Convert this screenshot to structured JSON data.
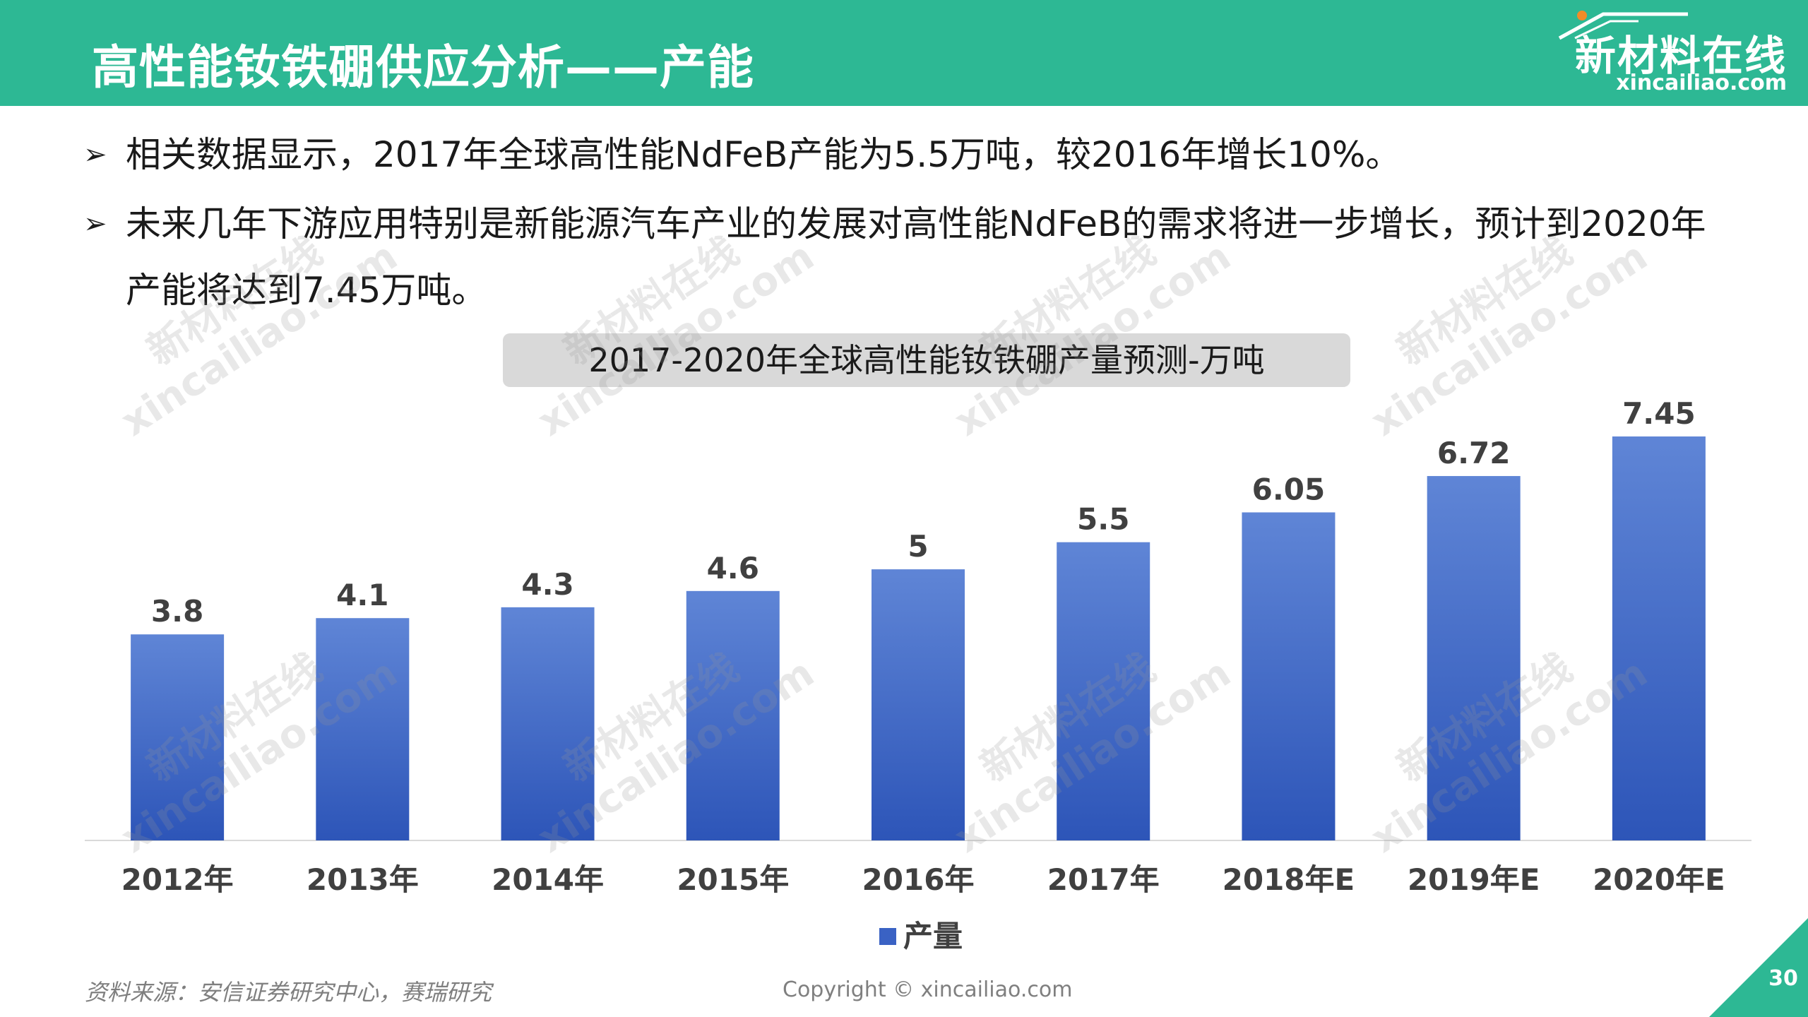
{
  "header": {
    "title": "高性能钕铁硼供应分析——产能",
    "logo_cn": "新材料在线",
    "logo_en": "xincailiao.com"
  },
  "bullets": [
    {
      "arrow": "➢",
      "text": "相关数据显示，2017年全球高性能NdFeB产能为5.5万吨，较2016年增长10%。"
    },
    {
      "arrow": "➢",
      "text": "未来几年下游应用特别是新能源汽车产业的发展对高性能NdFeB的需求将进一步增长，预计到2020年产能将达到7.45万吨。"
    }
  ],
  "chart_data": {
    "type": "bar",
    "title": "2017-2020年全球高性能钕铁硼产量预测-万吨",
    "categories": [
      "2012年",
      "2013年",
      "2014年",
      "2015年",
      "2016年",
      "2017年",
      "2018年E",
      "2019年E",
      "2020年E"
    ],
    "series": [
      {
        "name": "产量",
        "values": [
          3.8,
          4.1,
          4.3,
          4.6,
          5,
          5.5,
          6.05,
          6.72,
          7.45
        ]
      }
    ],
    "value_labels": [
      "3.8",
      "4.1",
      "4.3",
      "4.6",
      "5",
      "5.5",
      "6.05",
      "6.72",
      "7.45"
    ],
    "xlabel": "",
    "ylabel": "",
    "ylim": [
      0,
      7.45
    ],
    "grid": false,
    "legend": "bottom",
    "bar_color": "#3a62c4"
  },
  "footer": {
    "source": "资料来源：安信证券研究中心，赛瑞研究",
    "copyright": "Copyright © xincailiao.com",
    "page_number": "30"
  },
  "watermark": {
    "cn": "新材料在线",
    "en": "xincailiao.com"
  },
  "colors": {
    "header_bg": "#2db894",
    "bar": "#3a62c4"
  }
}
